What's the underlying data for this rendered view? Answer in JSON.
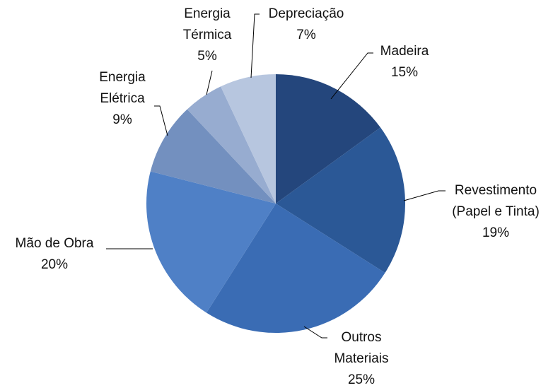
{
  "chart_data": {
    "type": "pie",
    "categories": [
      "Madeira",
      "Revestimento (Papel e Tinta)",
      "Outros Materiais",
      "Mão de Obra",
      "Energia Elétrica",
      "Energia Térmica",
      "Depreciação"
    ],
    "values": [
      15,
      19,
      25,
      20,
      9,
      5,
      7
    ],
    "value_labels": [
      "15%",
      "19%",
      "25%",
      "20%",
      "9%",
      "5%",
      "7%"
    ],
    "colors": [
      "#24467c",
      "#2b5896",
      "#3a6cb4",
      "#4f80c6",
      "#7390bf",
      "#97acd0",
      "#b7c6df"
    ]
  }
}
